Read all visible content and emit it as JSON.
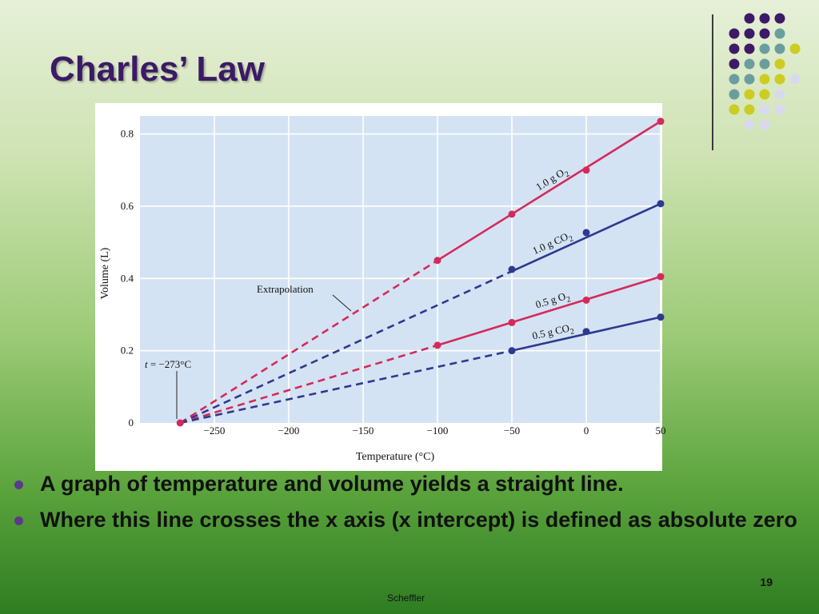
{
  "slide": {
    "title": "Charles’ Law",
    "bullets": [
      "A graph of temperature and volume yields a straight line.",
      "Where this line crosses the x axis (x intercept) is defined as absolute zero"
    ],
    "page_number": "19",
    "footer": "Scheffler"
  },
  "colors": {
    "title": "#3b1a66",
    "accent_purple": "#3d1a66",
    "accent_teal": "#6a9e9e",
    "accent_yellow": "#cccc22",
    "accent_lavender": "#d9d9ee",
    "plot_background": "#d4e3f3",
    "o2_series": "#d42a5a",
    "co2_series": "#2e3990"
  },
  "chart_data": {
    "type": "line",
    "xlabel": "Temperature (°C)",
    "ylabel": "Volume (L)",
    "xlim": [
      -300,
      50
    ],
    "ylim": [
      0,
      0.85
    ],
    "x_ticks": [
      -250,
      -200,
      -150,
      -100,
      -50,
      0,
      50
    ],
    "x_tick_labels": [
      "−250",
      "−200",
      "−150",
      "−100",
      "−50",
      "0",
      "50"
    ],
    "y_ticks": [
      0,
      0.2,
      0.4,
      0.6,
      0.8
    ],
    "y_tick_labels": [
      "0",
      "0.2",
      "0.4",
      "0.6",
      "0.8"
    ],
    "grid": true,
    "series": [
      {
        "name": "1.0 g O2",
        "label_main": "1.0 g O",
        "label_sub": "2",
        "color_key": "o2_series",
        "measured_x": [
          -100,
          -50,
          0,
          50
        ],
        "measured_y": [
          0.45,
          0.578,
          0.7,
          0.835
        ],
        "fit_line": [
          [
            -100,
            0.45
          ],
          [
            50,
            0.835
          ]
        ],
        "extrapolated_from": -273
      },
      {
        "name": "1.0 g CO2",
        "label_main": "1.0 g CO",
        "label_sub": "2",
        "color_key": "co2_series",
        "measured_x": [
          -50,
          0,
          50
        ],
        "measured_y": [
          0.425,
          0.527,
          0.607
        ],
        "fit_line": [
          [
            -50,
            0.42
          ],
          [
            50,
            0.607
          ]
        ],
        "extrapolated_from": -273
      },
      {
        "name": "0.5 g O2",
        "label_main": "0.5 g O",
        "label_sub": "2",
        "color_key": "o2_series",
        "measured_x": [
          -100,
          -50,
          0,
          50
        ],
        "measured_y": [
          0.215,
          0.278,
          0.34,
          0.405
        ],
        "fit_line": [
          [
            -100,
            0.215
          ],
          [
            50,
            0.405
          ]
        ],
        "extrapolated_from": -273
      },
      {
        "name": "0.5 g CO2",
        "label_main": "0.5 g CO",
        "label_sub": "2",
        "color_key": "co2_series",
        "measured_x": [
          -50,
          0,
          50
        ],
        "measured_y": [
          0.2,
          0.253,
          0.293
        ],
        "fit_line": [
          [
            -50,
            0.2
          ],
          [
            50,
            0.293
          ]
        ],
        "extrapolated_from": -273
      }
    ],
    "absolute_zero": {
      "x": -273,
      "y": 0,
      "label_var": "t",
      "label_rest": " = −273°C"
    },
    "annotations": [
      {
        "text": "Extrapolation"
      }
    ]
  }
}
